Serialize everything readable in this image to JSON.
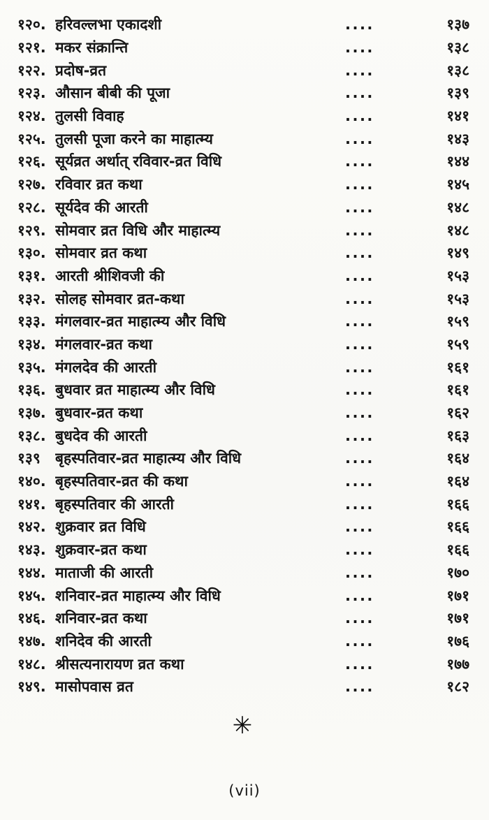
{
  "toc": {
    "leader_dots": "....",
    "entries": [
      {
        "num": "१२०.",
        "title": "हरिवल्लभा एकादशी",
        "page": "१३७"
      },
      {
        "num": "१२१.",
        "title": "मकर संक्रान्ति",
        "page": "१३८"
      },
      {
        "num": "१२२.",
        "title": "प्रदोष-व्रत",
        "page": "१३८"
      },
      {
        "num": "१२३.",
        "title": "औसान बीबी की पूजा",
        "page": "१३९"
      },
      {
        "num": "१२४.",
        "title": "तुलसी विवाह",
        "page": "१४१"
      },
      {
        "num": "१२५.",
        "title": "तुलसी पूजा करने का माहात्म्य",
        "page": "१४३"
      },
      {
        "num": "१२६.",
        "title": "सूर्यव्रत अर्थात् रविवार-व्रत विधि",
        "page": "१४४"
      },
      {
        "num": "१२७.",
        "title": "रविवार व्रत कथा",
        "page": "१४५"
      },
      {
        "num": "१२८.",
        "title": "सूर्यदेव की आरती",
        "page": "१४८"
      },
      {
        "num": "१२९.",
        "title": "सोमवार व्रत विधि और माहात्म्य",
        "page": "१४८"
      },
      {
        "num": "१३०.",
        "title": "सोमवार व्रत कथा",
        "page": "१४९"
      },
      {
        "num": "१३१.",
        "title": "आरती श्रीशिवजी की",
        "page": "१५३"
      },
      {
        "num": "१३२.",
        "title": "सोलह सोमवार व्रत-कथा",
        "page": "१५३"
      },
      {
        "num": "१३३.",
        "title": "मंगलवार-व्रत माहात्म्य और विधि",
        "page": "१५९"
      },
      {
        "num": "१३४.",
        "title": "मंगलवार-व्रत कथा",
        "page": "१५९"
      },
      {
        "num": "१३५.",
        "title": "मंगलदेव की आरती",
        "page": "१६१"
      },
      {
        "num": "१३६.",
        "title": "बुधवार व्रत माहात्म्य और विधि",
        "page": "१६१"
      },
      {
        "num": "१३७.",
        "title": "बुधवार-व्रत कथा",
        "page": "१६२"
      },
      {
        "num": "१३८.",
        "title": "बुधदेव की आरती",
        "page": "१६३"
      },
      {
        "num": "१३९",
        "title": "बृहस्पतिवार-व्रत माहात्म्य और विधि",
        "page": "१६४"
      },
      {
        "num": "१४०.",
        "title": "बृहस्पतिवार-व्रत की कथा",
        "page": "१६४"
      },
      {
        "num": "१४१.",
        "title": "बृहस्पतिवार की आरती",
        "page": "१६६"
      },
      {
        "num": "१४२.",
        "title": "शुक्रवार व्रत विधि",
        "page": "१६६"
      },
      {
        "num": "१४३.",
        "title": "शुक्रवार-व्रत कथा",
        "page": "१६६"
      },
      {
        "num": "१४४.",
        "title": "माताजी की आरती",
        "page": "१७०"
      },
      {
        "num": "१४५.",
        "title": "शनिवार-व्रत माहात्म्य और विधि",
        "page": "१७१"
      },
      {
        "num": "१४६.",
        "title": "शनिवार-व्रत कथा",
        "page": "१७१"
      },
      {
        "num": "१४७.",
        "title": "शनिदेव की आरती",
        "page": "१७६"
      },
      {
        "num": "१४८.",
        "title": "श्रीसत्यनारायण व्रत कथा",
        "page": "१७७"
      },
      {
        "num": "१४९.",
        "title": "मासोपवास व्रत",
        "page": "१८२"
      }
    ]
  },
  "footer": {
    "separator_symbol": "✳",
    "page_number": "(vii)"
  }
}
